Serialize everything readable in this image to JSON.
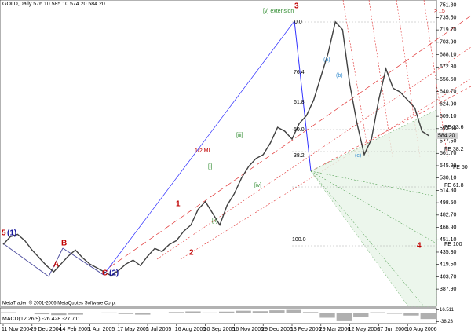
{
  "chart_data": {
    "type": "line",
    "title": "GOLD,Daily 576.10 585.10 574.20 584.20",
    "footer": "MetaTrader, © 2001-2006 MetaQuotes Software Corp.",
    "categories": [
      "11 Nov 2004",
      null,
      null,
      null,
      "29 Dec 2004",
      null,
      null,
      null,
      "14 Feb 2005",
      null,
      null,
      null,
      "1 Apr 2005",
      null,
      null,
      null,
      "17 May 2005",
      null,
      null,
      null,
      "1 Jul 2005",
      null,
      null,
      null,
      "16 Aug 2005",
      null,
      null,
      null,
      "30 Sep 2005",
      null,
      null,
      null,
      "16 Nov 2005",
      null,
      null,
      null,
      "29 Dec 2005",
      null,
      null,
      null,
      "13 Feb 2006",
      null,
      null,
      null,
      "29 Mar 2006",
      null,
      null,
      null,
      "12 May 2006",
      null,
      null,
      null,
      "27 Jun 2006",
      null,
      null,
      null,
      "10 Aug 2006",
      null,
      null,
      null
    ],
    "series": [
      {
        "name": "GOLD",
        "color": "#404040",
        "values": [
          445,
          455,
          458,
          450,
          438,
          428,
          418,
          410,
          420,
          430,
          438,
          428,
          420,
          415,
          410,
          405,
          412,
          420,
          425,
          418,
          430,
          440,
          436,
          445,
          450,
          462,
          470,
          490,
          500,
          485,
          470,
          495,
          510,
          530,
          545,
          555,
          560,
          575,
          595,
          590,
          580,
          600,
          610,
          630,
          660,
          690,
          730,
          720,
          650,
          600,
          560,
          580,
          630,
          670,
          645,
          640,
          630,
          620,
          590,
          584
        ]
      }
    ],
    "ylim": [
      384,
      752
    ],
    "yticks": [
      {
        "value": 751.3,
        "label": "751.30"
      },
      {
        "value": 735.5,
        "label": "735.50"
      },
      {
        "value": 719.7,
        "label": "719.70"
      },
      {
        "value": 703.9,
        "label": "703.90"
      },
      {
        "value": 688.1,
        "label": "688.10"
      },
      {
        "value": 672.3,
        "label": "672.30"
      },
      {
        "value": 656.5,
        "label": "656.50"
      },
      {
        "value": 640.7,
        "label": "640.70"
      },
      {
        "value": 624.9,
        "label": "624.90"
      },
      {
        "value": 609.1,
        "label": "609.10"
      },
      {
        "value": 593.3,
        "label": "593.30"
      },
      {
        "value": 577.5,
        "label": "577.50"
      },
      {
        "value": 561.7,
        "label": "561.70"
      },
      {
        "value": 545.9,
        "label": "545.90"
      },
      {
        "value": 530.1,
        "label": "530.10"
      },
      {
        "value": 514.3,
        "label": "514.30"
      },
      {
        "value": 498.5,
        "label": "498.50"
      },
      {
        "value": 482.7,
        "label": "482.70"
      },
      {
        "value": 466.9,
        "label": "466.90"
      },
      {
        "value": 451.1,
        "label": "451.10"
      },
      {
        "value": 435.3,
        "label": "435.30"
      },
      {
        "value": 419.5,
        "label": "419.50"
      },
      {
        "value": 403.7,
        "label": "403.70"
      },
      {
        "value": 387.9,
        "label": "387.90"
      }
    ],
    "last_price": {
      "value": 584.2,
      "label": "584.20"
    },
    "annotations": [
      {
        "text": "[v] extension",
        "color": "#2e8b2e"
      },
      {
        "text": "3",
        "color": "#c00000"
      },
      {
        "text": "5",
        "color": "#c00000"
      },
      {
        "text": "(1)",
        "color": "#1a1a9c"
      },
      {
        "text": "A",
        "color": "#c00000"
      },
      {
        "text": "B",
        "color": "#c00000"
      },
      {
        "text": "C",
        "color": "#c00000"
      },
      {
        "text": "(2)",
        "color": "#1a1a9c"
      },
      {
        "text": "1",
        "color": "#c00000"
      },
      {
        "text": "2",
        "color": "#c00000"
      },
      {
        "text": "[i]",
        "color": "#2e8b2e"
      },
      {
        "text": "[ii]",
        "color": "#2e8b2e"
      },
      {
        "text": "[iii]",
        "color": "#2e8b2e"
      },
      {
        "text": "[iv]",
        "color": "#2e8b2e"
      },
      {
        "text": "(a)",
        "color": "#3a8fd0"
      },
      {
        "text": "(b)",
        "color": "#3a8fd0"
      },
      {
        "text": "(c)",
        "color": "#3a8fd0"
      },
      {
        "text": "4",
        "color": "#c00000"
      },
      {
        "text": "> ..5",
        "color": "#c00000"
      },
      {
        "text": "1/2 ML",
        "color": "#c00000"
      },
      {
        "text": "FE 23.6",
        "color": "#000000"
      },
      {
        "text": "FE 38.2",
        "color": "#000000"
      },
      {
        "text": "FE 50",
        "color": "#000000"
      },
      {
        "text": "FE 61.8",
        "color": "#000000"
      },
      {
        "text": "FE 100",
        "color": "#000000"
      },
      {
        "text": "100.0",
        "color": "#000000"
      },
      {
        "text": "0.0",
        "color": "#000000"
      },
      {
        "text": "76.4",
        "color": "#000000"
      },
      {
        "text": "61.8",
        "color": "#000000"
      },
      {
        "text": "50.0",
        "color": "#000000"
      },
      {
        "text": "38.2",
        "color": "#000000"
      }
    ],
    "macd": {
      "title": "MACD(12,26,9) -26.428 -27.711",
      "color": "#b0b0b0",
      "values": [
        5,
        3,
        -4,
        -8,
        -6,
        2,
        4,
        -3,
        -6,
        1,
        6,
        9,
        4,
        8,
        12,
        10,
        14,
        16,
        6,
        -20,
        -36,
        -15,
        5,
        -2,
        -10,
        -26
      ],
      "ylim": [
        -40,
        18
      ],
      "yticks": [
        16.511,
        -38.23
      ]
    }
  }
}
